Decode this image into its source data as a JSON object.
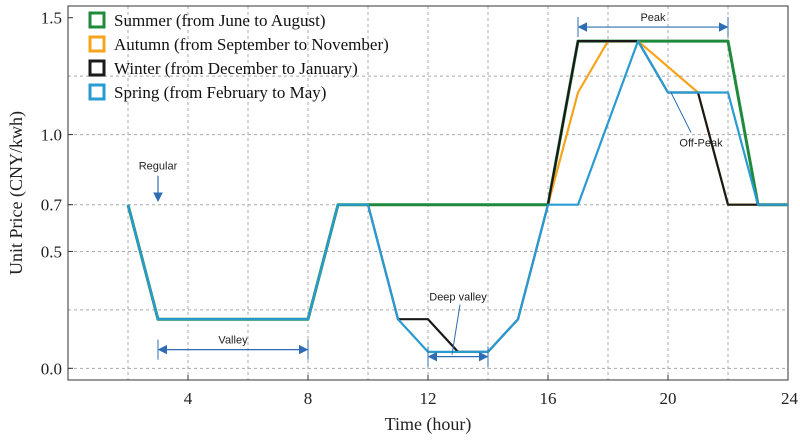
{
  "chart_data": {
    "type": "line",
    "title": "",
    "xlabel": "Time (hour)",
    "ylabel": "Unit Price (CNY/kwh)",
    "xlim": [
      0,
      24
    ],
    "ylim": [
      -0.05,
      1.55
    ],
    "grid": true,
    "xticks": [
      4,
      8,
      12,
      16,
      20,
      24
    ],
    "xtick_labels": [
      "4",
      "8",
      "12",
      "16",
      "20",
      "24"
    ],
    "yticks": [
      0.0,
      0.5,
      0.7,
      1.0,
      1.5
    ],
    "ytick_labels": [
      "0.0",
      "0.5",
      "0.7",
      "1.0",
      "1.5"
    ],
    "legend_position": "top-left",
    "series": [
      {
        "name": "Summer (from June to August)",
        "color": "#1f8a3c",
        "x": [
          2,
          3,
          8,
          9,
          16,
          17,
          22,
          23,
          24
        ],
        "y": [
          0.7,
          0.21,
          0.21,
          0.7,
          0.7,
          1.4,
          1.4,
          0.7,
          0.7
        ]
      },
      {
        "name": "Autumn (from September to November)",
        "color": "#f5a41b",
        "x": [
          16,
          17,
          18,
          19,
          21,
          22,
          23,
          24
        ],
        "y": [
          0.7,
          1.18,
          1.4,
          1.4,
          1.18,
          0.7,
          0.7,
          0.7
        ]
      },
      {
        "name": "Winter (from December to January)",
        "color": "#1a1a1a",
        "x": [
          10,
          11,
          12,
          13,
          14,
          15,
          16,
          17,
          19,
          20,
          21,
          22,
          23,
          24
        ],
        "y": [
          0.7,
          0.21,
          0.21,
          0.07,
          0.07,
          0.21,
          0.7,
          1.4,
          1.4,
          1.18,
          1.18,
          0.7,
          0.7,
          0.7
        ]
      },
      {
        "name": "Spring (from February to May)",
        "color": "#2a9bd2",
        "x": [
          2,
          3,
          8,
          9,
          10,
          11,
          12,
          14,
          15,
          16,
          17,
          19,
          20,
          21,
          22,
          23,
          24
        ],
        "y": [
          0.7,
          0.21,
          0.21,
          0.7,
          0.7,
          0.21,
          0.07,
          0.07,
          0.21,
          0.7,
          0.7,
          1.4,
          1.18,
          1.18,
          1.18,
          0.7,
          0.7
        ]
      }
    ],
    "annotations": [
      {
        "text": "Regular",
        "type": "arrow-down",
        "x": 3.0,
        "y": 0.7
      },
      {
        "text": "Valley",
        "type": "span",
        "x1": 3,
        "x2": 8,
        "y": 0.08
      },
      {
        "text": "Deep valley",
        "type": "span",
        "x1": 12,
        "x2": 14,
        "y": 0.05
      },
      {
        "text": "Peak",
        "type": "span",
        "x1": 17,
        "x2": 22,
        "y": 1.46
      },
      {
        "text": "Off-Peak",
        "type": "pointer",
        "x": 20.5,
        "y": 1.18
      }
    ]
  }
}
